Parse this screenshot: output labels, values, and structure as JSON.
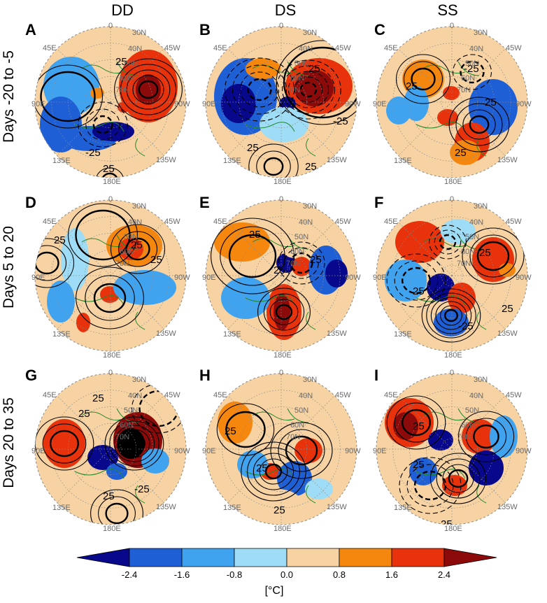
{
  "columns": [
    "DD",
    "DS",
    "SS"
  ],
  "rows": [
    "Days -20 to -5",
    "Days 5 to 20",
    "Days 20 to 35"
  ],
  "panels": [
    "A",
    "B",
    "C",
    "D",
    "E",
    "F",
    "G",
    "H",
    "I"
  ],
  "map_labels": {
    "lon_0": "0",
    "lon_45w": "45W",
    "lon_90w": "90W",
    "lon_135w": "135W",
    "lon_180e": "180E",
    "lon_135e": "135E",
    "lon_90e": "90E",
    "lon_45e": "45E",
    "lat_30n": "30N",
    "lat_40n": "40N",
    "lat_50n": "50N",
    "lat_60n": "60N",
    "lat_70n": "70N"
  },
  "contour_label": "25",
  "contour_label_neg": "-25",
  "colorbar": {
    "ticks": [
      "-2.4",
      "-1.6",
      "-0.8",
      "0.0",
      "0.8",
      "1.6",
      "2.4"
    ],
    "colors": [
      "#08088c",
      "#1f5fd6",
      "#3fa3f0",
      "#9fdcf5",
      "#f7d2a2",
      "#f5870f",
      "#e8320c",
      "#8c0a0a"
    ],
    "unit": "[°C]"
  }
}
